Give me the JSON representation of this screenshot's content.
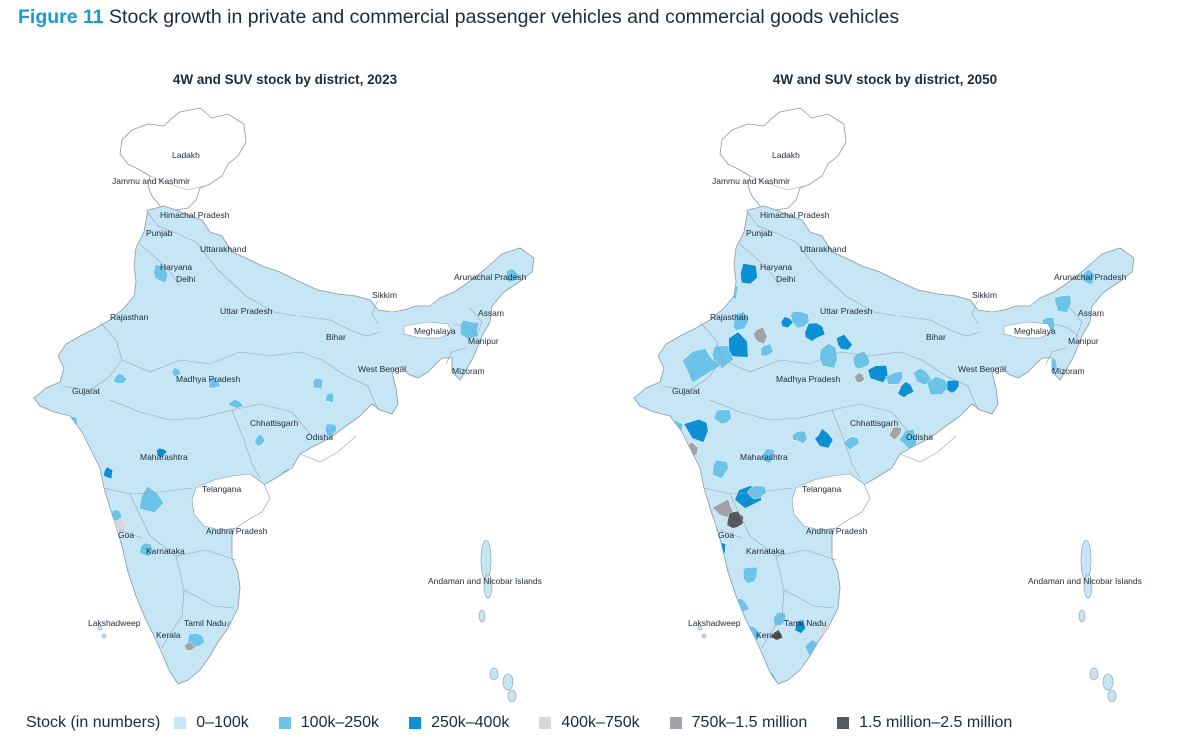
{
  "figure": {
    "number": "Figure 11",
    "title": "Stock growth in private and commercial passenger vehicles and commercial goods vehicles"
  },
  "maps": [
    {
      "title": "4W and SUV stock by district, 2023",
      "labels": [
        "Ladakh",
        "Jammu and Kashmir",
        "Himachal Pradesh",
        "Punjab",
        "Uttarakhand",
        "Haryana",
        "Delhi",
        "Rajasthan",
        "Uttar Pradesh",
        "Sikkim",
        "Arunachal Pradesh",
        "Assam",
        "Meghalaya",
        "Manipur",
        "Bihar",
        "West Bengal",
        "Mizoram",
        "Gujarat",
        "Madhya Pradesh",
        "Chhattisgarh",
        "Odisha",
        "Maharashtra",
        "Telangana",
        "Andhra Pradesh",
        "Goa",
        "Karnataka",
        "Andaman and Nicobar Islands",
        "Lakshadweep",
        "Tamil Nadu",
        "Kerala"
      ]
    },
    {
      "title": "4W and SUV stock by district, 2050",
      "labels": [
        "Ladakh",
        "Jammu and Kashmir",
        "Himachal Pradesh",
        "Punjab",
        "Uttarakhand",
        "Haryana",
        "Delhi",
        "Rajasthan",
        "Uttar Pradesh",
        "Sikkim",
        "Arunachal Pradesh",
        "Assam",
        "Meghalaya",
        "Manipur",
        "Bihar",
        "West Bengal",
        "Mizoram",
        "Gujarat",
        "Madhya Pradesh",
        "Chhattisgarh",
        "Odisha",
        "Maharashtra",
        "Telangana",
        "Andhra Pradesh",
        "Goa",
        "Karnataka",
        "Andaman and Nicobar Islands",
        "Lakshadweep",
        "Tamil Nadu",
        "Kerala"
      ]
    }
  ],
  "legend": {
    "title": "Stock (in numbers)",
    "items": [
      {
        "label": "0–100k",
        "color": "#c6e6f5"
      },
      {
        "label": "100k–250k",
        "color": "#6cc3ea"
      },
      {
        "label": "250k–400k",
        "color": "#0d8fd3"
      },
      {
        "label": "400k–750k",
        "color": "#d6d8dc"
      },
      {
        "label": "750k–1.5 million",
        "color": "#a0a2a5"
      },
      {
        "label": "1.5 million–2.5 million",
        "color": "#555a5f"
      }
    ]
  }
}
